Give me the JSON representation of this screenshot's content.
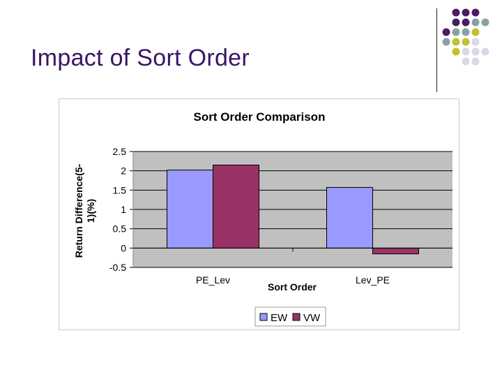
{
  "slide": {
    "title": "Impact of Sort Order"
  },
  "decor": {
    "dot_colors": [
      "#4b1c63",
      "#86a2a4",
      "#c0c22e",
      "#d8d8e6"
    ]
  },
  "chart_data": {
    "type": "bar",
    "title": "Sort Order Comparison",
    "xlabel": "Sort Order",
    "ylabel": "Return Difference(5-1)(%)",
    "ylabel_lines": [
      "Return Difference(5-",
      "1)(%)"
    ],
    "categories": [
      "PE_Lev",
      "Lev_PE"
    ],
    "series": [
      {
        "name": "EW",
        "values": [
          2.02,
          1.57
        ],
        "color": "#9999ff"
      },
      {
        "name": "VW",
        "values": [
          2.15,
          -0.15
        ],
        "color": "#993366"
      }
    ],
    "ylim": [
      -0.5,
      2.5
    ],
    "yticks": [
      2.5,
      2,
      1.5,
      1,
      0.5,
      0,
      -0.5
    ],
    "ytick_labels": [
      "2.5",
      "2",
      "1.5",
      "1",
      "0.5",
      "0",
      "-0.5"
    ],
    "grid": true,
    "plot_background": "#c0c0c0",
    "legend_position": "bottom"
  }
}
